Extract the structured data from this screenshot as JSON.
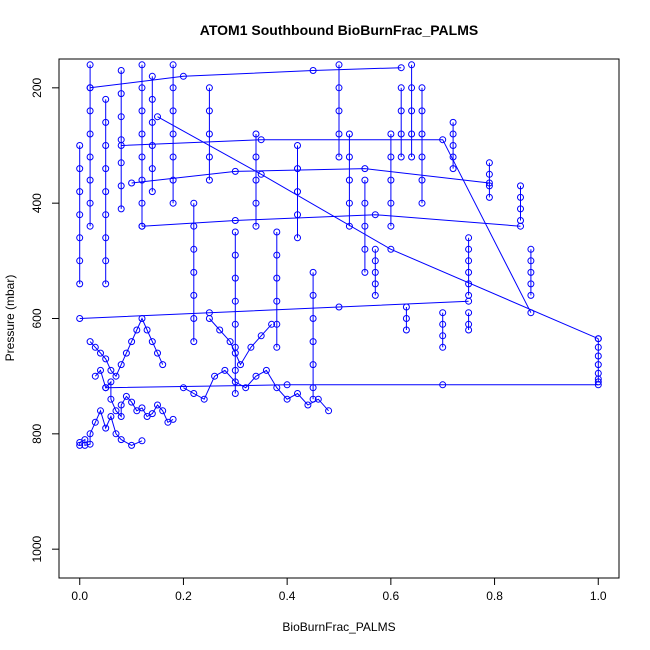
{
  "chart_data": {
    "type": "scatter",
    "title": "ATOM1 Southbound BioBurnFrac_PALMS",
    "xlabel": "BioBurnFrac_PALMS",
    "ylabel": "Pressure (mbar)",
    "xlim": [
      -0.04,
      1.04
    ],
    "ylim": [
      1050,
      150
    ],
    "y_axis_reversed": true,
    "x_ticks": [
      0.0,
      0.2,
      0.4,
      0.6,
      0.8,
      1.0
    ],
    "x_tick_labels": [
      "0.0",
      "0.2",
      "0.4",
      "0.6",
      "0.8",
      "1.0"
    ],
    "y_ticks": [
      200,
      400,
      600,
      800,
      1000
    ],
    "y_tick_labels": [
      "200",
      "400",
      "600",
      "800",
      "1000"
    ],
    "marker": "open-circle",
    "connect_points": true,
    "series_color": "#0000ff",
    "grid": false,
    "legend": "none",
    "series": [
      {
        "x": [
          0.0,
          0.0,
          0.01,
          0.01,
          0.02,
          0.02,
          0.03,
          0.04,
          0.05,
          0.06,
          0.07,
          0.08,
          0.1,
          0.12
        ],
        "y": [
          820,
          815,
          810,
          820,
          818,
          800,
          780,
          760,
          790,
          770,
          800,
          810,
          820,
          812
        ]
      },
      {
        "x": [
          0.03,
          0.04,
          0.05,
          0.06,
          0.06,
          0.07,
          0.08,
          0.08,
          0.09,
          0.1,
          0.11,
          0.12,
          0.13,
          0.14,
          0.15,
          0.16,
          0.17,
          0.18
        ],
        "y": [
          700,
          690,
          720,
          710,
          740,
          760,
          770,
          750,
          735,
          745,
          760,
          755,
          770,
          765,
          750,
          760,
          780,
          775
        ]
      },
      {
        "x": [
          0.02,
          0.03,
          0.04,
          0.05,
          0.06,
          0.07,
          0.08,
          0.09,
          0.1,
          0.11,
          0.12,
          0.13,
          0.14,
          0.15,
          0.16
        ],
        "y": [
          640,
          650,
          660,
          670,
          690,
          700,
          680,
          660,
          640,
          620,
          600,
          620,
          640,
          660,
          680
        ]
      },
      {
        "x": [
          0.2,
          0.22,
          0.24,
          0.26,
          0.28,
          0.3,
          0.32,
          0.34,
          0.36,
          0.38,
          0.4,
          0.42,
          0.44,
          0.46,
          0.48
        ],
        "y": [
          720,
          730,
          740,
          700,
          690,
          710,
          720,
          700,
          690,
          720,
          740,
          730,
          750,
          740,
          760
        ]
      },
      {
        "x": [
          0.25,
          0.27,
          0.29,
          0.3,
          0.31,
          0.33,
          0.35,
          0.37
        ],
        "y": [
          600,
          620,
          640,
          660,
          680,
          650,
          630,
          610
        ]
      },
      {
        "x": [
          0.0,
          0.0,
          0.0,
          0.0,
          0.0,
          0.0,
          0.0
        ],
        "y": [
          300,
          340,
          380,
          420,
          460,
          500,
          540
        ]
      },
      {
        "x": [
          0.02,
          0.02,
          0.02,
          0.02,
          0.02,
          0.02,
          0.02,
          0.02
        ],
        "y": [
          160,
          200,
          240,
          280,
          320,
          360,
          400,
          440
        ]
      },
      {
        "x": [
          0.05,
          0.05,
          0.05,
          0.05,
          0.05,
          0.05,
          0.05,
          0.05,
          0.05
        ],
        "y": [
          220,
          260,
          300,
          340,
          380,
          420,
          460,
          500,
          540
        ]
      },
      {
        "x": [
          0.08,
          0.08,
          0.08,
          0.08,
          0.08,
          0.08,
          0.08
        ],
        "y": [
          170,
          210,
          250,
          290,
          330,
          370,
          410
        ]
      },
      {
        "x": [
          0.12,
          0.12,
          0.12,
          0.12,
          0.12,
          0.12,
          0.12,
          0.12
        ],
        "y": [
          160,
          200,
          240,
          280,
          320,
          360,
          400,
          440
        ]
      },
      {
        "x": [
          0.14,
          0.14,
          0.14,
          0.14,
          0.14,
          0.14
        ],
        "y": [
          180,
          220,
          260,
          300,
          340,
          380
        ]
      },
      {
        "x": [
          0.18,
          0.18,
          0.18,
          0.18,
          0.18,
          0.18,
          0.18
        ],
        "y": [
          160,
          200,
          240,
          280,
          320,
          360,
          400
        ]
      },
      {
        "x": [
          0.22,
          0.22,
          0.22,
          0.22,
          0.22,
          0.22,
          0.22
        ],
        "y": [
          400,
          440,
          480,
          520,
          560,
          600,
          640
        ]
      },
      {
        "x": [
          0.25,
          0.25,
          0.25,
          0.25,
          0.25
        ],
        "y": [
          200,
          240,
          280,
          320,
          360
        ]
      },
      {
        "x": [
          0.3,
          0.3,
          0.3,
          0.3,
          0.3,
          0.3,
          0.3,
          0.3
        ],
        "y": [
          450,
          490,
          530,
          570,
          610,
          650,
          690,
          730
        ]
      },
      {
        "x": [
          0.34,
          0.34,
          0.34,
          0.34,
          0.34
        ],
        "y": [
          280,
          320,
          360,
          400,
          440
        ]
      },
      {
        "x": [
          0.38,
          0.38,
          0.38,
          0.38,
          0.38,
          0.38
        ],
        "y": [
          450,
          490,
          530,
          570,
          610,
          650
        ]
      },
      {
        "x": [
          0.42,
          0.42,
          0.42,
          0.42,
          0.42
        ],
        "y": [
          300,
          340,
          380,
          420,
          460
        ]
      },
      {
        "x": [
          0.45,
          0.45,
          0.45,
          0.45,
          0.45,
          0.45,
          0.45
        ],
        "y": [
          520,
          560,
          600,
          640,
          680,
          720,
          740
        ]
      },
      {
        "x": [
          0.5,
          0.5,
          0.5,
          0.5,
          0.5
        ],
        "y": [
          160,
          200,
          240,
          280,
          320
        ]
      },
      {
        "x": [
          0.52,
          0.52,
          0.52,
          0.52,
          0.52
        ],
        "y": [
          280,
          320,
          360,
          400,
          440
        ]
      },
      {
        "x": [
          0.55,
          0.55,
          0.55,
          0.55,
          0.55
        ],
        "y": [
          360,
          400,
          440,
          480,
          520
        ]
      },
      {
        "x": [
          0.57,
          0.57,
          0.57,
          0.57,
          0.57
        ],
        "y": [
          480,
          500,
          520,
          540,
          560
        ]
      },
      {
        "x": [
          0.6,
          0.6,
          0.6,
          0.6,
          0.6
        ],
        "y": [
          280,
          320,
          360,
          400,
          440
        ]
      },
      {
        "x": [
          0.62,
          0.62,
          0.62,
          0.62
        ],
        "y": [
          200,
          240,
          280,
          320
        ]
      },
      {
        "x": [
          0.63,
          0.63,
          0.63
        ],
        "y": [
          580,
          600,
          620
        ]
      },
      {
        "x": [
          0.64,
          0.64,
          0.64,
          0.64,
          0.64
        ],
        "y": [
          160,
          200,
          240,
          280,
          320
        ]
      },
      {
        "x": [
          0.66,
          0.66,
          0.66,
          0.66,
          0.66,
          0.66
        ],
        "y": [
          200,
          240,
          280,
          320,
          360,
          400
        ]
      },
      {
        "x": [
          0.7,
          0.7,
          0.7,
          0.7
        ],
        "y": [
          590,
          610,
          630,
          650
        ]
      },
      {
        "x": [
          0.72,
          0.72,
          0.72,
          0.72,
          0.72
        ],
        "y": [
          260,
          280,
          300,
          320,
          340
        ]
      },
      {
        "x": [
          0.75,
          0.75,
          0.75,
          0.75,
          0.75,
          0.75
        ],
        "y": [
          460,
          480,
          500,
          520,
          540,
          560
        ]
      },
      {
        "x": [
          0.75,
          0.75,
          0.75
        ],
        "y": [
          590,
          610,
          620
        ]
      },
      {
        "x": [
          0.79,
          0.79,
          0.79,
          0.79
        ],
        "y": [
          330,
          350,
          370,
          390
        ]
      },
      {
        "x": [
          0.85,
          0.85,
          0.85,
          0.85
        ],
        "y": [
          370,
          390,
          410,
          430
        ]
      },
      {
        "x": [
          0.87,
          0.87,
          0.87,
          0.87,
          0.87
        ],
        "y": [
          480,
          500,
          520,
          540,
          560
        ]
      },
      {
        "x": [
          1.0,
          1.0,
          1.0,
          1.0,
          1.0,
          1.0,
          1.0
        ],
        "y": [
          635,
          650,
          665,
          680,
          695,
          705,
          710
        ]
      },
      {
        "x": [
          0.1,
          0.3,
          0.55,
          0.79
        ],
        "y": [
          365,
          345,
          340,
          365
        ]
      },
      {
        "x": [
          0.05,
          0.4,
          0.7,
          1.0
        ],
        "y": [
          720,
          715,
          715,
          715
        ]
      },
      {
        "x": [
          0.08,
          0.35,
          0.7,
          0.87
        ],
        "y": [
          300,
          290,
          290,
          590
        ]
      },
      {
        "x": [
          0.02,
          0.2,
          0.45,
          0.62
        ],
        "y": [
          200,
          180,
          170,
          165
        ]
      },
      {
        "x": [
          0.0,
          0.25,
          0.5,
          0.75
        ],
        "y": [
          600,
          590,
          580,
          570
        ]
      },
      {
        "x": [
          0.12,
          0.3,
          0.57,
          0.85
        ],
        "y": [
          440,
          430,
          420,
          440
        ]
      },
      {
        "x": [
          0.15,
          0.35,
          0.6,
          1.0
        ],
        "y": [
          250,
          350,
          480,
          635
        ]
      }
    ]
  }
}
